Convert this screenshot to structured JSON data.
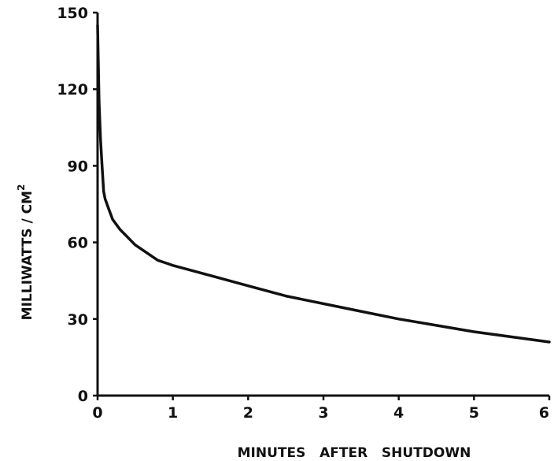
{
  "chart_data": {
    "type": "line",
    "title": "",
    "xlabel": "MINUTES   AFTER   SHUTDOWN",
    "ylabel": "MILLIWATTS / CM",
    "ylabel_superscript": "2",
    "xlim": [
      0,
      6
    ],
    "ylim": [
      0,
      150
    ],
    "xticks": [
      "0",
      "1",
      "2",
      "3",
      "4",
      "5",
      "6"
    ],
    "yticks": [
      "0",
      "30",
      "60",
      "90",
      "120",
      "150"
    ],
    "grid": false,
    "series": [
      {
        "x": [
          0,
          0.02,
          0.04,
          0.06,
          0.08,
          0.1,
          0.15,
          0.2,
          0.3,
          0.4,
          0.5,
          0.6,
          0.7,
          0.8,
          0.9,
          1.0,
          1.5,
          2.0,
          2.5,
          3.0,
          3.5,
          4.0,
          4.5,
          5.0,
          5.5,
          6.0
        ],
        "y": [
          145,
          115,
          100,
          90,
          80,
          77,
          73,
          69,
          65,
          62,
          59,
          57,
          55,
          53,
          52,
          51,
          47,
          43,
          39,
          36,
          33,
          30,
          27.5,
          25,
          23,
          21
        ]
      }
    ]
  }
}
